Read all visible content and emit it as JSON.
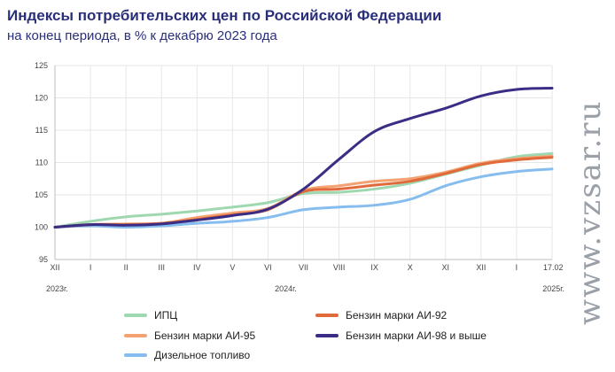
{
  "title": "Индексы потребительских цен по Российской Федерации",
  "subtitle": "на конец периода, в % к декабрю 2023 года",
  "watermark": "www.vzsar.ru",
  "chart_data": {
    "type": "line",
    "x": [
      "XII",
      "I",
      "II",
      "III",
      "IV",
      "V",
      "VI",
      "VII",
      "VIII",
      "IX",
      "X",
      "XI",
      "XII",
      "I",
      "17.02"
    ],
    "year_labels": [
      "2023г.",
      "2024г.",
      "2025г."
    ],
    "ylim": [
      95,
      125
    ],
    "yticks": [
      95,
      100,
      105,
      110,
      115,
      120,
      125
    ],
    "grid": true,
    "legend_position": "bottom",
    "series": [
      {
        "name": "ИПЦ",
        "color": "#9fd8b0",
        "values": [
          100,
          100.9,
          101.6,
          102.0,
          102.5,
          103.1,
          103.8,
          105.2,
          105.4,
          105.9,
          106.8,
          108.2,
          109.6,
          110.9,
          111.4
        ]
      },
      {
        "name": "Бензин марки АИ-92",
        "color": "#e06a3b",
        "values": [
          100,
          100.4,
          100.4,
          100.6,
          101.2,
          101.9,
          102.7,
          105.5,
          105.9,
          106.5,
          107.1,
          108.3,
          109.7,
          110.4,
          110.8
        ]
      },
      {
        "name": "Бензин марки АИ-95",
        "color": "#f4a271",
        "values": [
          100,
          100.4,
          100.5,
          100.6,
          101.5,
          102.2,
          102.9,
          105.7,
          106.4,
          107.1,
          107.5,
          108.5,
          109.9,
          110.6,
          111.0
        ]
      },
      {
        "name": "Бензин марки АИ-98 и выше",
        "color": "#3a2d86",
        "values": [
          100,
          100.4,
          100.3,
          100.5,
          101.1,
          101.8,
          102.8,
          105.9,
          110.5,
          114.8,
          116.8,
          118.4,
          120.3,
          121.3,
          121.5
        ]
      },
      {
        "name": "Дизельное топливо",
        "color": "#86bdee",
        "values": [
          100,
          100.2,
          100.0,
          100.2,
          100.6,
          100.9,
          101.5,
          102.7,
          103.1,
          103.4,
          104.3,
          106.4,
          107.8,
          108.6,
          109.0
        ]
      }
    ]
  }
}
